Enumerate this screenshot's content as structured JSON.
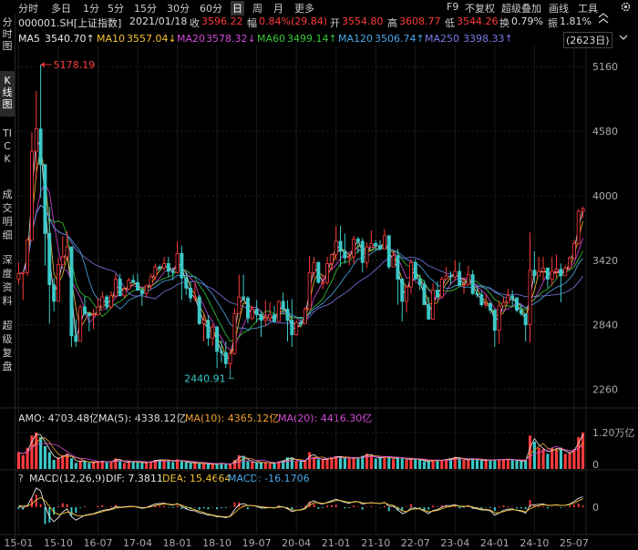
{
  "toolbar": {
    "periods": [
      "分时",
      "多日",
      "1分",
      "5分",
      "15分",
      "30分",
      "60分",
      "日",
      "周",
      "月",
      "更多"
    ],
    "active_period": "日",
    "right_items": [
      "F9",
      "不复权",
      "超级叠加",
      "画线",
      "工具"
    ],
    "settings_icon": "gear-icon"
  },
  "side_tabs": [
    {
      "label": "分时图",
      "active": false
    },
    {
      "label": "K线图",
      "active": true
    },
    {
      "label": "TICK",
      "active": false
    },
    {
      "label": "成交明细",
      "active": false
    },
    {
      "label": "深度资料",
      "active": false
    },
    {
      "label": "超级复盘",
      "active": false
    }
  ],
  "info": {
    "code": "000001.SH[上证指数]",
    "date": "2021/01/18",
    "close_label": "收",
    "close": "3596.22",
    "change_label": "幅",
    "change": "0.84%(29.84)",
    "open_label": "开",
    "open": "3554.80",
    "high_label": "高",
    "high": "3608.77",
    "low_label": "低",
    "low": "3544.26",
    "turnover_label": "换",
    "turnover": "0.79%",
    "amplitude_label": "振",
    "amplitude": "1.81%"
  },
  "ma_line": {
    "items": [
      {
        "label": "MA5",
        "value": "3540.70↑",
        "color": "#e8e8e8"
      },
      {
        "label": "MA10",
        "value": "3557.04↓",
        "color": "#f2c230"
      },
      {
        "label": "MA20",
        "value": "3578.32↓",
        "color": "#d24bd8"
      },
      {
        "label": "MA60",
        "value": "3499.14↑",
        "color": "#38c838"
      },
      {
        "label": "MA120",
        "value": "3506.74↑",
        "color": "#4aa8e8"
      },
      {
        "label": "MA250",
        "value": "3398.33↑",
        "color": "#7a7ae8"
      }
    ],
    "count_badge": "(2623日)"
  },
  "volume_header": {
    "amo": "AMO: 4703.48亿",
    "ma5": "MA(5): 4338.12亿",
    "ma10": "MA(10): 4365.12亿",
    "ma20": "MA(20): 4416.30亿"
  },
  "macd_header": {
    "help": "?",
    "title": "MACD(12,26,9)",
    "dif": "DIF: 7.3811",
    "dea": "DEA: 15.4664",
    "macd": "MACD: -16.1706"
  },
  "colors": {
    "up": "#ff3b3b",
    "down": "#3cc8c8",
    "background": "#000000",
    "dif": "#e8e8e8",
    "dea": "#f2c230",
    "macd_text": "#4aa8e8"
  },
  "chart_data": [
    {
      "type": "candlestick",
      "title": "000001.SH[上证指数]",
      "ylim": [
        2100,
        5350
      ],
      "y_ticks": [
        5160,
        4580,
        4000,
        3420,
        2840,
        2260
      ],
      "x_ticks": [
        "15-01",
        "15-10",
        "16-07",
        "17-04",
        "18-01",
        "18-10",
        "19-07",
        "20-04",
        "21-01",
        "21-10",
        "22-07",
        "23-04",
        "24-01",
        "24-10",
        "25-07"
      ],
      "annotations": [
        {
          "label": "5178.19",
          "x": "2015-06"
        },
        {
          "label": "2440.91",
          "x": "2019-01"
        }
      ],
      "x": [
        "2015-01",
        "2015-02",
        "2015-03",
        "2015-04",
        "2015-05",
        "2015-06",
        "2015-07",
        "2015-08",
        "2015-09",
        "2015-10",
        "2015-11",
        "2015-12",
        "2016-01",
        "2016-02",
        "2016-03",
        "2016-04",
        "2016-05",
        "2016-06",
        "2016-07",
        "2016-08",
        "2016-09",
        "2016-10",
        "2016-11",
        "2016-12",
        "2017-01",
        "2017-02",
        "2017-03",
        "2017-04",
        "2017-05",
        "2017-06",
        "2017-07",
        "2017-08",
        "2017-09",
        "2017-10",
        "2017-11",
        "2017-12",
        "2018-01",
        "2018-02",
        "2018-03",
        "2018-04",
        "2018-05",
        "2018-06",
        "2018-07",
        "2018-08",
        "2018-09",
        "2018-10",
        "2018-11",
        "2018-12",
        "2019-01",
        "2019-02",
        "2019-03",
        "2019-04",
        "2019-05",
        "2019-06",
        "2019-07",
        "2019-08",
        "2019-09",
        "2019-10",
        "2019-11",
        "2019-12",
        "2020-01",
        "2020-02",
        "2020-03",
        "2020-04",
        "2020-05",
        "2020-06",
        "2020-07",
        "2020-08",
        "2020-09",
        "2020-10",
        "2020-11",
        "2020-12",
        "2021-01",
        "2021-02",
        "2021-03",
        "2021-04",
        "2021-05",
        "2021-06",
        "2021-07",
        "2021-08",
        "2021-09",
        "2021-10",
        "2021-11",
        "2021-12",
        "2022-01",
        "2022-02",
        "2022-03",
        "2022-04",
        "2022-05",
        "2022-06",
        "2022-07",
        "2022-08",
        "2022-09",
        "2022-10",
        "2022-11",
        "2022-12",
        "2023-01",
        "2023-02",
        "2023-03",
        "2023-04",
        "2023-05",
        "2023-06",
        "2023-07",
        "2023-08",
        "2023-09",
        "2023-10",
        "2023-11",
        "2023-12",
        "2024-01",
        "2024-02",
        "2024-03",
        "2024-04",
        "2024-05",
        "2024-06",
        "2024-07",
        "2024-08",
        "2024-09",
        "2024-10",
        "2024-11",
        "2024-12",
        "2025-01",
        "2025-02",
        "2025-03",
        "2025-04",
        "2025-05",
        "2025-06",
        "2025-07",
        "2025-08",
        "2025-09"
      ],
      "close": [
        3300,
        3310,
        3600,
        4400,
        4600,
        4280,
        3660,
        3200,
        3050,
        3380,
        3450,
        3540,
        2740,
        2690,
        3000,
        2940,
        2920,
        2930,
        3000,
        3090,
        3000,
        3100,
        3250,
        3100,
        3160,
        3240,
        3220,
        3150,
        3120,
        3190,
        3270,
        3360,
        3350,
        3390,
        3320,
        3310,
        3480,
        3260,
        3170,
        3080,
        3090,
        2850,
        2880,
        2720,
        2820,
        2600,
        2590,
        2490,
        2580,
        2940,
        3090,
        3080,
        2900,
        2980,
        2930,
        2880,
        2900,
        2930,
        2870,
        3050,
        2980,
        2880,
        2750,
        2860,
        2850,
        2980,
        3310,
        3400,
        3220,
        3220,
        3390,
        3470,
        3590,
        3500,
        3440,
        3450,
        3610,
        3590,
        3400,
        3540,
        3570,
        3550,
        3520,
        3640,
        3360,
        3460,
        3250,
        3050,
        3180,
        3400,
        3250,
        3200,
        3020,
        2890,
        3150,
        3090,
        3250,
        3280,
        3270,
        3320,
        3200,
        3200,
        3290,
        3120,
        3110,
        3020,
        3030,
        2970,
        2790,
        3010,
        3040,
        3100,
        3080,
        2970,
        2940,
        2840,
        3330,
        3280,
        3320,
        3350,
        3250,
        3320,
        3340,
        3280,
        3350,
        3440,
        3570,
        3860,
        3880
      ],
      "high": [
        3400,
        3320,
        3620,
        4570,
        4940,
        5178.19,
        4210,
        3900,
        3260,
        3440,
        3640,
        3680,
        3540,
        2890,
        3020,
        3100,
        2950,
        2980,
        3080,
        3140,
        3110,
        3140,
        3300,
        3300,
        3180,
        3260,
        3290,
        3300,
        3170,
        3200,
        3300,
        3390,
        3380,
        3450,
        3450,
        3350,
        3590,
        3550,
        3320,
        3220,
        3220,
        3110,
        2930,
        2930,
        2850,
        2830,
        2700,
        2690,
        2620,
        2990,
        3290,
        3290,
        3100,
        3010,
        3060,
        2970,
        3060,
        3040,
        3010,
        3060,
        3130,
        3060,
        3070,
        2880,
        2910,
        3000,
        3460,
        3450,
        3410,
        3290,
        3450,
        3480,
        3730,
        3730,
        3660,
        3480,
        3640,
        3630,
        3620,
        3580,
        3690,
        3600,
        3600,
        3700,
        3650,
        3500,
        3520,
        3250,
        3200,
        3430,
        3430,
        3290,
        3240,
        3090,
        3210,
        3230,
        3270,
        3360,
        3320,
        3420,
        3400,
        3270,
        3370,
        3330,
        3170,
        3150,
        3110,
        3050,
        2980,
        3060,
        3090,
        3160,
        3150,
        3090,
        3010,
        2880,
        3670,
        3500,
        3450,
        3450,
        3340,
        3450,
        3470,
        3390,
        3370,
        3460,
        3600,
        3880,
        3900
      ],
      "low": [
        3200,
        3060,
        3280,
        3650,
        4150,
        3980,
        3370,
        2850,
        2960,
        3050,
        3400,
        3420,
        2640,
        2640,
        2700,
        2920,
        2780,
        2800,
        2920,
        3000,
        2970,
        2980,
        3080,
        3100,
        3080,
        3150,
        3220,
        3150,
        3010,
        3080,
        3160,
        3240,
        3320,
        3330,
        3270,
        3240,
        3300,
        3060,
        3110,
        3040,
        3050,
        2840,
        2690,
        2650,
        2650,
        2450,
        2500,
        2450,
        2440.91,
        2570,
        2950,
        3050,
        2850,
        2880,
        2860,
        2730,
        2830,
        2870,
        2860,
        2870,
        2960,
        2690,
        2640,
        2740,
        2820,
        2850,
        2990,
        3260,
        3210,
        3160,
        3200,
        3330,
        3420,
        3360,
        3390,
        3370,
        3390,
        3480,
        3310,
        3350,
        3550,
        3510,
        3510,
        3520,
        3340,
        3360,
        3020,
        2870,
        2950,
        3120,
        3240,
        3150,
        3030,
        2890,
        2900,
        3080,
        3090,
        3280,
        3200,
        3240,
        3180,
        3120,
        3190,
        3110,
        3080,
        3000,
        2990,
        2940,
        2640,
        2670,
        3040,
        3040,
        3010,
        2950,
        2920,
        2690,
        2680,
        3210,
        3280,
        3240,
        3170,
        3190,
        3260,
        3040,
        3310,
        3340,
        3440,
        3560,
        3800
      ],
      "volume_unit": "万亿",
      "volume_ticks": [
        "1.20万亿",
        "0"
      ],
      "volume": [
        0.55,
        0.45,
        0.7,
        1.1,
        1.2,
        1.05,
        0.75,
        0.55,
        0.3,
        0.38,
        0.45,
        0.5,
        0.35,
        0.2,
        0.28,
        0.25,
        0.2,
        0.22,
        0.25,
        0.26,
        0.22,
        0.25,
        0.35,
        0.28,
        0.2,
        0.25,
        0.26,
        0.22,
        0.2,
        0.22,
        0.25,
        0.3,
        0.3,
        0.3,
        0.28,
        0.22,
        0.32,
        0.25,
        0.22,
        0.2,
        0.21,
        0.18,
        0.18,
        0.17,
        0.15,
        0.17,
        0.2,
        0.15,
        0.15,
        0.3,
        0.45,
        0.4,
        0.25,
        0.22,
        0.2,
        0.22,
        0.22,
        0.18,
        0.2,
        0.25,
        0.28,
        0.38,
        0.36,
        0.25,
        0.24,
        0.28,
        0.55,
        0.4,
        0.32,
        0.3,
        0.35,
        0.38,
        0.42,
        0.4,
        0.38,
        0.35,
        0.37,
        0.35,
        0.43,
        0.5,
        0.45,
        0.35,
        0.38,
        0.4,
        0.38,
        0.32,
        0.4,
        0.35,
        0.3,
        0.35,
        0.32,
        0.3,
        0.25,
        0.25,
        0.3,
        0.28,
        0.3,
        0.32,
        0.35,
        0.4,
        0.35,
        0.3,
        0.3,
        0.35,
        0.3,
        0.28,
        0.3,
        0.28,
        0.32,
        0.3,
        0.32,
        0.33,
        0.3,
        0.28,
        0.25,
        0.28,
        1.1,
        0.9,
        0.7,
        0.65,
        0.5,
        0.7,
        0.65,
        0.7,
        0.5,
        0.55,
        0.65,
        1.05,
        1.2
      ],
      "macd_ticks": [
        "0"
      ],
      "macd_hist": [
        -20,
        -30,
        20,
        110,
        160,
        40,
        -210,
        -190,
        -90,
        10,
        50,
        40,
        -110,
        -70,
        -10,
        10,
        0,
        0,
        15,
        25,
        5,
        10,
        30,
        5,
        5,
        10,
        5,
        -5,
        -15,
        5,
        20,
        25,
        15,
        15,
        -5,
        -10,
        20,
        -20,
        -25,
        -20,
        -5,
        -30,
        -15,
        -25,
        -5,
        -25,
        -10,
        -10,
        5,
        60,
        60,
        20,
        -25,
        0,
        -5,
        -15,
        0,
        5,
        -5,
        20,
        0,
        -20,
        -35,
        5,
        5,
        15,
        70,
        40,
        -20,
        -10,
        20,
        25,
        30,
        0,
        -15,
        -10,
        20,
        5,
        -30,
        5,
        10,
        0,
        -5,
        15,
        -50,
        0,
        -45,
        -50,
        5,
        40,
        -5,
        -15,
        -35,
        -30,
        20,
        5,
        25,
        15,
        5,
        10,
        -15,
        -5,
        10,
        -20,
        -10,
        -15,
        -5,
        -10,
        -45,
        10,
        20,
        10,
        5,
        -15,
        -15,
        -25,
        90,
        30,
        10,
        10,
        -15,
        5,
        5,
        -10,
        5,
        15,
        30,
        45,
        20
      ],
      "dif": [
        10,
        -5,
        20,
        120,
        240,
        200,
        20,
        -120,
        -180,
        -130,
        -60,
        -20,
        -120,
        -160,
        -130,
        -100,
        -90,
        -80,
        -60,
        -40,
        -30,
        -20,
        5,
        0,
        5,
        10,
        10,
        0,
        -15,
        -5,
        20,
        40,
        45,
        50,
        35,
        25,
        45,
        10,
        -20,
        -40,
        -45,
        -70,
        -80,
        -100,
        -100,
        -120,
        -120,
        -130,
        -110,
        -30,
        30,
        45,
        20,
        20,
        10,
        -10,
        -10,
        -5,
        -10,
        10,
        5,
        -20,
        -55,
        -40,
        -30,
        -10,
        60,
        80,
        50,
        40,
        60,
        80,
        100,
        80,
        60,
        50,
        70,
        70,
        40,
        50,
        55,
        50,
        45,
        60,
        10,
        10,
        -30,
        -80,
        -60,
        -10,
        -10,
        -20,
        -50,
        -80,
        -40,
        -30,
        0,
        20,
        20,
        30,
        10,
        5,
        20,
        -10,
        -20,
        -35,
        -35,
        -45,
        -100,
        -70,
        -40,
        -25,
        -20,
        -40,
        -50,
        -75,
        20,
        30,
        35,
        40,
        20,
        25,
        30,
        20,
        25,
        40,
        70,
        110,
        130
      ],
      "dea": [
        20,
        15,
        15,
        40,
        90,
        120,
        80,
        10,
        -60,
        -90,
        -80,
        -60,
        -70,
        -100,
        -110,
        -105,
        -95,
        -85,
        -70,
        -55,
        -40,
        -30,
        -10,
        -5,
        0,
        5,
        8,
        5,
        -5,
        -5,
        5,
        20,
        30,
        40,
        38,
        32,
        38,
        25,
        5,
        -15,
        -30,
        -50,
        -65,
        -85,
        -95,
        -110,
        -115,
        -120,
        -115,
        -70,
        -20,
        15,
        20,
        20,
        15,
        5,
        0,
        -5,
        -8,
        0,
        3,
        -10,
        -35,
        -38,
        -35,
        -20,
        25,
        55,
        55,
        48,
        54,
        67,
        83,
        82,
        71,
        60,
        65,
        68,
        54,
        52,
        54,
        52,
        48,
        54,
        32,
        21,
        -5,
        -45,
        -55,
        -30,
        -20,
        -20,
        -35,
        -58,
        -49,
        -40,
        -20,
        0,
        10,
        20,
        15,
        10,
        15,
        2,
        -9,
        -22,
        -28,
        -36,
        -68,
        -69,
        -54,
        -40,
        -30,
        -35,
        -42,
        -58,
        -20,
        5,
        20,
        30,
        25,
        25,
        27,
        24,
        25,
        32,
        51,
        80,
        105
      ]
    }
  ]
}
